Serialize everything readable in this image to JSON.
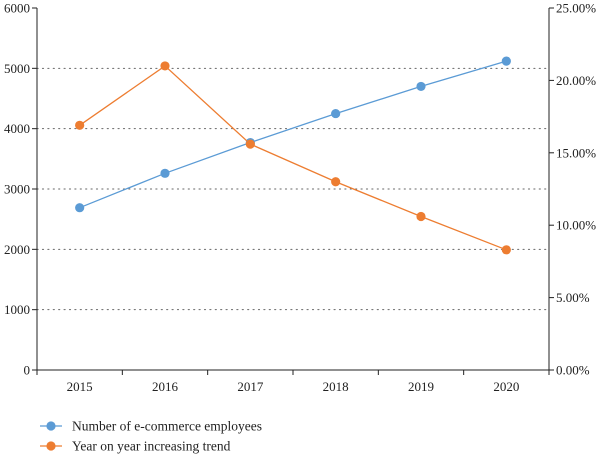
{
  "chart_data": {
    "type": "line",
    "title": "",
    "xlabel": "",
    "ylabel": "",
    "y2label": "",
    "categories": [
      "2015",
      "2016",
      "2017",
      "2018",
      "2019",
      "2020"
    ],
    "left_axis": {
      "min": 0,
      "max": 6000,
      "ticks": [
        0,
        1000,
        2000,
        3000,
        4000,
        5000,
        6000
      ],
      "tick_labels": [
        "0",
        "1000",
        "2000",
        "3000",
        "4000",
        "5000",
        "6000"
      ]
    },
    "right_axis": {
      "min": 0,
      "max": 25,
      "ticks": [
        0,
        5,
        10,
        15,
        20,
        25
      ],
      "tick_labels": [
        "0.00%",
        "5.00%",
        "10.00%",
        "15.00%",
        "20.00%",
        "25.00%"
      ]
    },
    "grid": "horizontal-dotted",
    "legend_position": "bottom-left",
    "series": [
      {
        "name": "Number of e-commerce employees",
        "axis": "left",
        "color": "#5b9bd5",
        "values": [
          2690,
          3260,
          3770,
          4250,
          4700,
          5120
        ]
      },
      {
        "name": "Year on year increasing trend",
        "axis": "right",
        "color": "#ed7d31",
        "values": [
          16.9,
          21.0,
          15.6,
          13.0,
          10.6,
          8.3
        ]
      }
    ]
  }
}
